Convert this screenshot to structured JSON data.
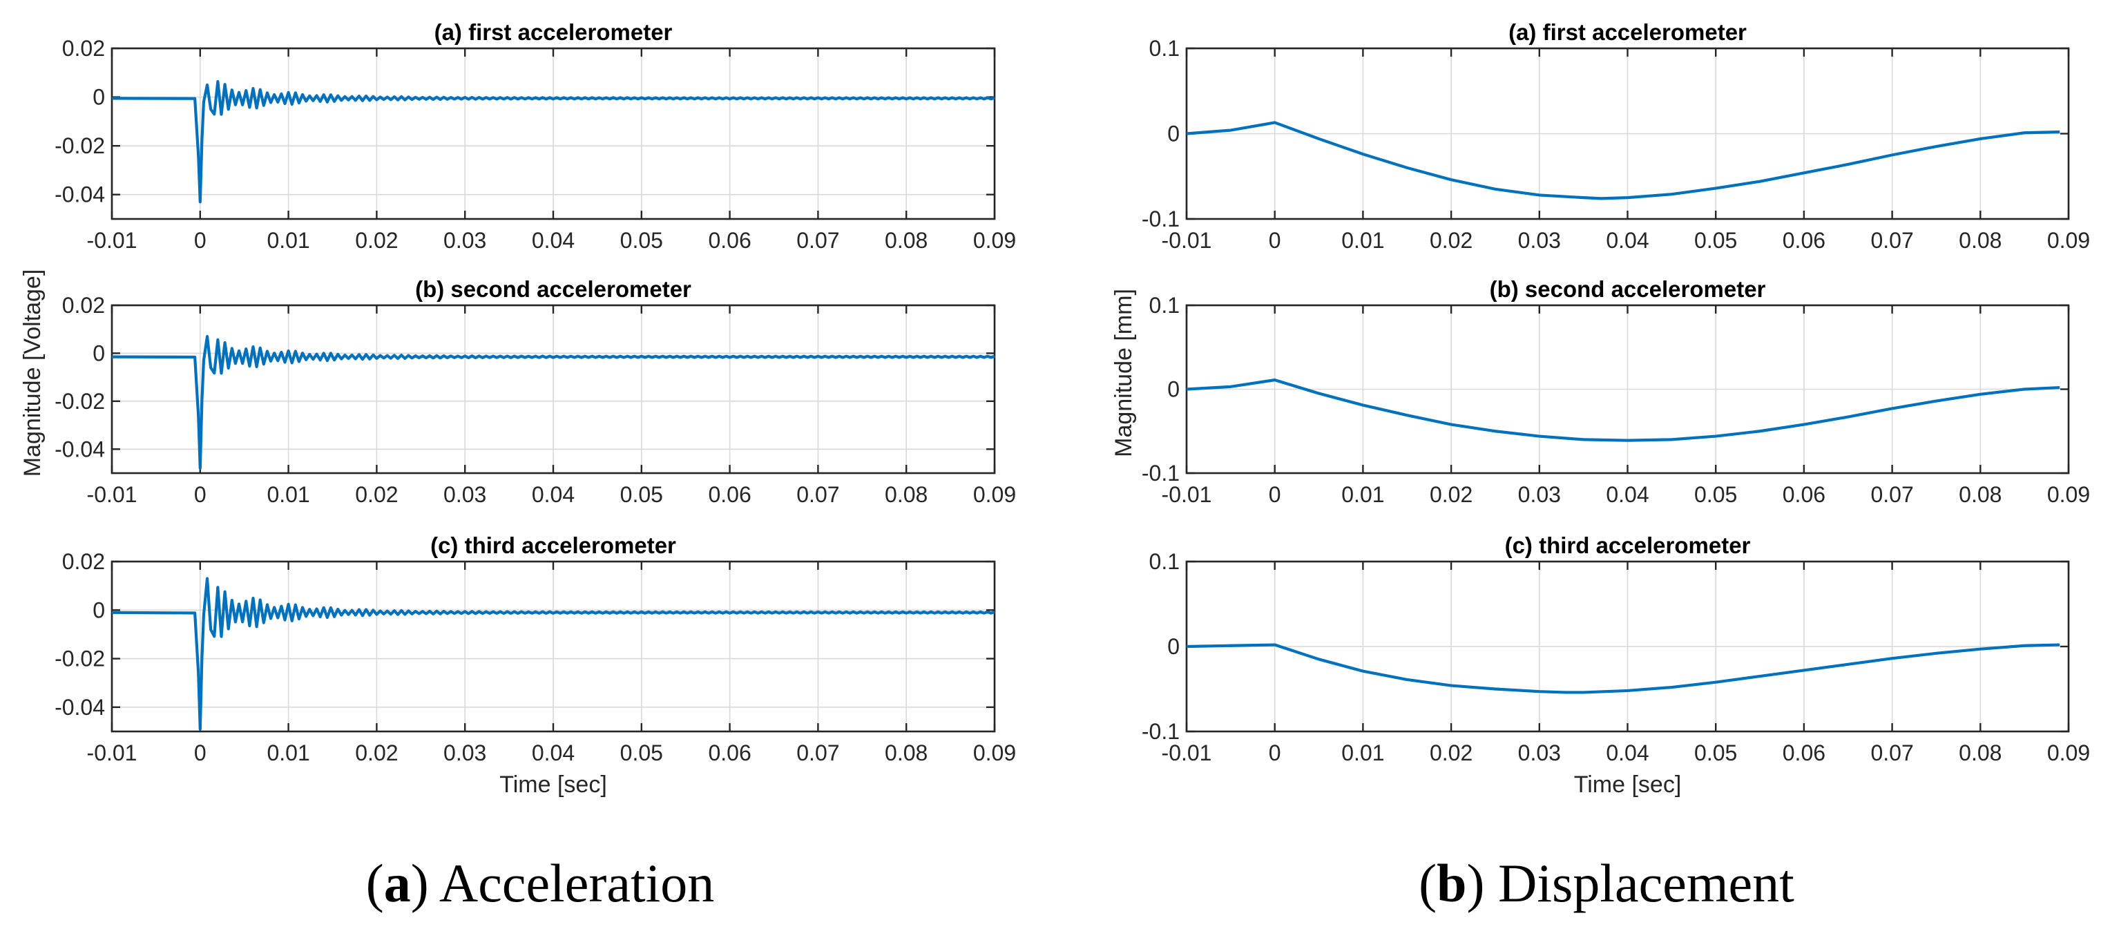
{
  "chart_data": [
    {
      "type": "line",
      "group": "acceleration",
      "title": "(a) first accelerometer",
      "xlabel": "",
      "ylabel": "Magnitude [Voltage]",
      "xlim": [
        -0.01,
        0.09
      ],
      "ylim": [
        -0.05,
        0.02
      ],
      "xticks": [
        -0.01,
        0,
        0.01,
        0.02,
        0.03,
        0.04,
        0.05,
        0.06,
        0.07,
        0.08,
        0.09
      ],
      "xtick_labels": [
        "-0.01",
        "0",
        "0.01",
        "0.02",
        "0.03",
        "0.04",
        "0.05",
        "0.06",
        "0.07",
        "0.08",
        "0.09"
      ],
      "yticks": [
        0.02,
        0,
        -0.02,
        -0.04
      ],
      "ytick_labels": [
        "0.02",
        "0",
        "-0.02",
        "-0.04"
      ],
      "grid": true,
      "series": [
        {
          "name": "first accelerometer",
          "color": "#0072bd",
          "baseline": -0.0005,
          "x": [
            -0.01,
            -0.0006,
            -0.0002,
            0.0,
            0.0002,
            0.0004,
            0.0008,
            0.0012
          ],
          "y": [
            -0.0005,
            -0.0006,
            -0.024,
            -0.043,
            -0.018,
            -0.002,
            0.005,
            -0.005
          ],
          "decay": {
            "start": 0.0012,
            "end": 0.09,
            "amp": 0.0075,
            "tau": 0.0075,
            "period": 0.0008
          }
        }
      ]
    },
    {
      "type": "line",
      "group": "acceleration",
      "title": "(b) second accelerometer",
      "xlabel": "",
      "ylabel": "Magnitude [Voltage]",
      "xlim": [
        -0.01,
        0.09
      ],
      "ylim": [
        -0.05,
        0.02
      ],
      "xticks": [
        -0.01,
        0,
        0.01,
        0.02,
        0.03,
        0.04,
        0.05,
        0.06,
        0.07,
        0.08,
        0.09
      ],
      "xtick_labels": [
        "-0.01",
        "0",
        "0.01",
        "0.02",
        "0.03",
        "0.04",
        "0.05",
        "0.06",
        "0.07",
        "0.08",
        "0.09"
      ],
      "yticks": [
        0.02,
        0,
        -0.02,
        -0.04
      ],
      "ytick_labels": [
        "0.02",
        "0",
        "-0.02",
        "-0.04"
      ],
      "grid": true,
      "series": [
        {
          "name": "second accelerometer",
          "color": "#0072bd",
          "baseline": -0.0015,
          "x": [
            -0.01,
            -0.0006,
            -0.0002,
            0.0,
            0.0002,
            0.0004,
            0.0008,
            0.0012
          ],
          "y": [
            -0.0015,
            -0.0016,
            -0.026,
            -0.048,
            -0.02,
            -0.003,
            0.007,
            -0.006
          ],
          "decay": {
            "start": 0.0012,
            "end": 0.09,
            "amp": 0.0078,
            "tau": 0.0075,
            "period": 0.0008
          }
        }
      ]
    },
    {
      "type": "line",
      "group": "acceleration",
      "title": "(c) third accelerometer",
      "xlabel": "Time [sec]",
      "ylabel": "Magnitude [Voltage]",
      "xlim": [
        -0.01,
        0.09
      ],
      "ylim": [
        -0.05,
        0.02
      ],
      "xticks": [
        -0.01,
        0,
        0.01,
        0.02,
        0.03,
        0.04,
        0.05,
        0.06,
        0.07,
        0.08,
        0.09
      ],
      "xtick_labels": [
        "-0.01",
        "0",
        "0.01",
        "0.02",
        "0.03",
        "0.04",
        "0.05",
        "0.06",
        "0.07",
        "0.08",
        "0.09"
      ],
      "yticks": [
        0.02,
        0,
        -0.02,
        -0.04
      ],
      "ytick_labels": [
        "0.02",
        "0",
        "-0.02",
        "-0.04"
      ],
      "grid": true,
      "series": [
        {
          "name": "third accelerometer",
          "color": "#0072bd",
          "baseline": -0.001,
          "x": [
            -0.01,
            -0.0006,
            -0.0002,
            0.0,
            0.0002,
            0.0004,
            0.0008,
            0.0012
          ],
          "y": [
            -0.001,
            -0.0012,
            -0.026,
            -0.049,
            -0.02,
            -0.002,
            0.013,
            -0.008
          ],
          "decay": {
            "start": 0.0012,
            "end": 0.09,
            "amp": 0.0115,
            "tau": 0.0072,
            "period": 0.0008
          }
        }
      ]
    },
    {
      "type": "line",
      "group": "displacement",
      "title": "(a) first accelerometer",
      "xlabel": "",
      "ylabel": "Magnitude [mm]",
      "xlim": [
        -0.01,
        0.09
      ],
      "ylim": [
        -0.1,
        0.1
      ],
      "xticks": [
        -0.01,
        0,
        0.01,
        0.02,
        0.03,
        0.04,
        0.05,
        0.06,
        0.07,
        0.08,
        0.09
      ],
      "xtick_labels": [
        "-0.01",
        "0",
        "0.01",
        "0.02",
        "0.03",
        "0.04",
        "0.05",
        "0.06",
        "0.07",
        "0.08",
        "0.09"
      ],
      "yticks": [
        0.1,
        0,
        -0.1
      ],
      "ytick_labels": [
        "0.1",
        "0",
        "-0.1"
      ],
      "grid": true,
      "series": [
        {
          "name": "first accelerometer displacement",
          "color": "#0072bd",
          "x": [
            -0.01,
            -0.005,
            0.0,
            0.005,
            0.01,
            0.015,
            0.02,
            0.025,
            0.03,
            0.035,
            0.037,
            0.04,
            0.045,
            0.05,
            0.055,
            0.06,
            0.065,
            0.07,
            0.075,
            0.08,
            0.085,
            0.089
          ],
          "y": [
            0.0,
            0.004,
            0.013,
            -0.006,
            -0.024,
            -0.04,
            -0.054,
            -0.065,
            -0.072,
            -0.075,
            -0.076,
            -0.075,
            -0.071,
            -0.064,
            -0.056,
            -0.046,
            -0.036,
            -0.025,
            -0.015,
            -0.006,
            0.001,
            0.002
          ]
        }
      ]
    },
    {
      "type": "line",
      "group": "displacement",
      "title": "(b) second accelerometer",
      "xlabel": "",
      "ylabel": "Magnitude [mm]",
      "xlim": [
        -0.01,
        0.09
      ],
      "ylim": [
        -0.1,
        0.1
      ],
      "xticks": [
        -0.01,
        0,
        0.01,
        0.02,
        0.03,
        0.04,
        0.05,
        0.06,
        0.07,
        0.08,
        0.09
      ],
      "xtick_labels": [
        "-0.01",
        "0",
        "0.01",
        "0.02",
        "0.03",
        "0.04",
        "0.05",
        "0.06",
        "0.07",
        "0.08",
        "0.09"
      ],
      "yticks": [
        0.1,
        0,
        -0.1
      ],
      "ytick_labels": [
        "0.1",
        "0",
        "-0.1"
      ],
      "grid": true,
      "series": [
        {
          "name": "second accelerometer displacement",
          "color": "#0072bd",
          "x": [
            -0.01,
            -0.005,
            0.0,
            0.005,
            0.01,
            0.015,
            0.02,
            0.025,
            0.03,
            0.035,
            0.04,
            0.045,
            0.05,
            0.055,
            0.06,
            0.065,
            0.07,
            0.075,
            0.08,
            0.085,
            0.089
          ],
          "y": [
            0.0,
            0.003,
            0.011,
            -0.005,
            -0.019,
            -0.031,
            -0.042,
            -0.05,
            -0.056,
            -0.06,
            -0.061,
            -0.06,
            -0.056,
            -0.05,
            -0.042,
            -0.033,
            -0.023,
            -0.014,
            -0.006,
            0.0,
            0.002
          ]
        }
      ]
    },
    {
      "type": "line",
      "group": "displacement",
      "title": "(c) third accelerometer",
      "xlabel": "Time [sec]",
      "ylabel": "Magnitude [mm]",
      "xlim": [
        -0.01,
        0.09
      ],
      "ylim": [
        -0.1,
        0.1
      ],
      "xticks": [
        -0.01,
        0,
        0.01,
        0.02,
        0.03,
        0.04,
        0.05,
        0.06,
        0.07,
        0.08,
        0.09
      ],
      "xtick_labels": [
        "-0.01",
        "0",
        "0.01",
        "0.02",
        "0.03",
        "0.04",
        "0.05",
        "0.06",
        "0.07",
        "0.08",
        "0.09"
      ],
      "yticks": [
        0.1,
        0,
        -0.1
      ],
      "ytick_labels": [
        "0.1",
        "0",
        "-0.1"
      ],
      "grid": true,
      "series": [
        {
          "name": "third accelerometer displacement",
          "color": "#0072bd",
          "x": [
            -0.01,
            -0.005,
            0.0,
            0.005,
            0.01,
            0.015,
            0.02,
            0.025,
            0.03,
            0.033,
            0.035,
            0.04,
            0.045,
            0.05,
            0.055,
            0.06,
            0.065,
            0.07,
            0.075,
            0.08,
            0.085,
            0.089
          ],
          "y": [
            0.0,
            0.001,
            0.002,
            -0.015,
            -0.029,
            -0.039,
            -0.046,
            -0.05,
            -0.053,
            -0.054,
            -0.054,
            -0.052,
            -0.048,
            -0.042,
            -0.035,
            -0.028,
            -0.021,
            -0.014,
            -0.008,
            -0.003,
            0.001,
            0.002
          ]
        }
      ]
    }
  ],
  "shared_labels": {
    "acceleration_ylabel": "Magnitude [Voltage]",
    "displacement_ylabel": "Magnitude [mm]",
    "xlabel": "Time [sec]"
  },
  "captions": {
    "left": {
      "bold": "a",
      "text": " Acceleration"
    },
    "right": {
      "bold": "b",
      "text": " Displacement"
    }
  }
}
